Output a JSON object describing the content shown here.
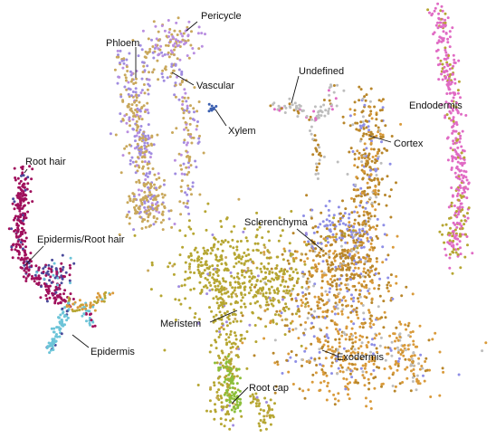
{
  "chart_data": {
    "type": "scatter",
    "title": "",
    "xlabel": "",
    "ylabel": "",
    "grid": false,
    "legend": "none",
    "series": [
      {
        "name": "Pericycle",
        "color": "#b98ee0"
      },
      {
        "name": "Phloem",
        "color": "#c9a85c"
      },
      {
        "name": "Vascular",
        "color": "#a08ce0"
      },
      {
        "name": "Xylem",
        "color": "#3b5fb0"
      },
      {
        "name": "Undefined",
        "color": "#bdbdbd"
      },
      {
        "name": "Cortex",
        "color": "#b8862a"
      },
      {
        "name": "Endodermis",
        "color": "#e06bc4"
      },
      {
        "name": "Root hair",
        "color": "#a0105c"
      },
      {
        "name": "Epidermis/Root hair",
        "color": "#4a4a9a"
      },
      {
        "name": "Epidermis",
        "color": "#6cc4d8"
      },
      {
        "name": "Sclerenchyma",
        "color": "#8e8ee6"
      },
      {
        "name": "Meristem",
        "color": "#b6a632"
      },
      {
        "name": "Exodermis",
        "color": "#d99a3a"
      },
      {
        "name": "Root cap",
        "color": "#8cbf3a"
      }
    ]
  },
  "labels": {
    "pericycle": "Pericycle",
    "phloem": "Phloem",
    "vascular": "Vascular",
    "xylem": "Xylem",
    "undefined": "Undefined",
    "endodermis": "Endodermis",
    "cortex": "Cortex",
    "root_hair": "Root hair",
    "epidermis_root_hair": "Epidermis/Root hair",
    "sclerenchyma": "Sclerenchyma",
    "meristem": "Meristem",
    "epidermis": "Epidermis",
    "exodermis": "Exodermis",
    "root_cap": "Root cap"
  }
}
